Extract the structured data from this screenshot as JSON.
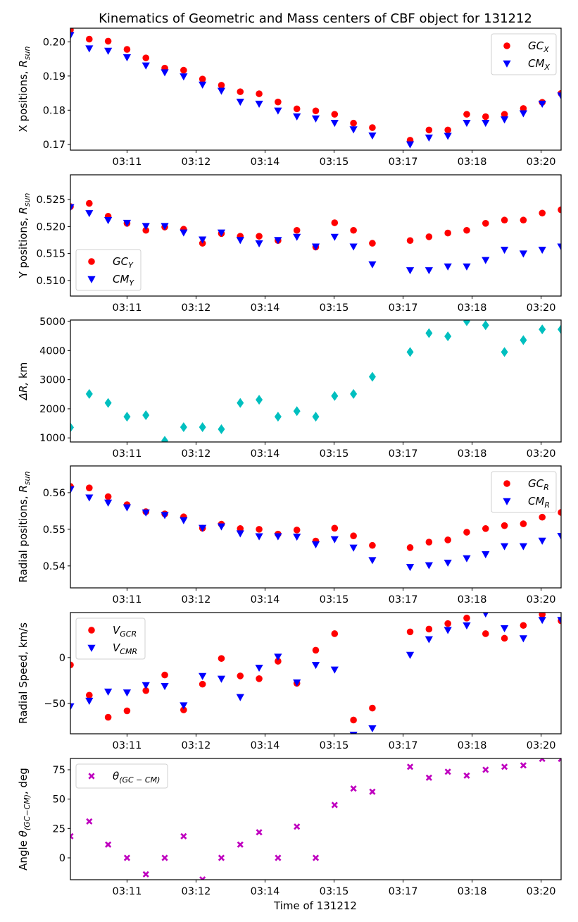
{
  "figure_title": "Kinematics of Geometric and Mass centers of CBF object for 131212",
  "xlabel": "Time of 131212",
  "chart_data": {
    "type": "scatter",
    "title": "Kinematics of Geometric and Mass centers of CBF object for 131212",
    "xlabel": "Time of 131212",
    "x_note": "x is sample index of evenly spaced observations; index 17 has no data",
    "x": [
      0,
      1,
      2,
      3,
      4,
      5,
      6,
      7,
      8,
      9,
      10,
      11,
      12,
      13,
      14,
      15,
      16,
      17,
      18,
      19,
      20,
      21,
      22,
      23,
      24,
      25,
      26
    ],
    "xlim": [
      0,
      26
    ],
    "xticks": [
      {
        "at": 3.0,
        "label": "03:11"
      },
      {
        "at": 6.657,
        "label": "03:12"
      },
      {
        "at": 10.313,
        "label": "03:14"
      },
      {
        "at": 13.97,
        "label": "03:15"
      },
      {
        "at": 17.627,
        "label": "03:17"
      },
      {
        "at": 21.284,
        "label": "03:18"
      },
      {
        "at": 24.94,
        "label": "03:20"
      }
    ],
    "panels": [
      {
        "id": "x-positions",
        "ylabel": "X positions, ",
        "ylabel_math": "R",
        "ylabel_sub": "sun",
        "ylim": [
          0.1683,
          0.204
        ],
        "yticks": [
          0.17,
          0.18,
          0.19,
          0.2
        ],
        "ytick_labels": [
          "0.17",
          "0.18",
          "0.19",
          "0.20"
        ],
        "legend": "top-right",
        "series": [
          {
            "name": "GC",
            "sub": "X",
            "color": "#ff0000",
            "marker": "circle",
            "values": [
              0.2035,
              0.2008,
              0.2002,
              0.1978,
              0.1953,
              0.1923,
              0.1917,
              0.1891,
              0.1873,
              0.1854,
              0.1848,
              0.1824,
              0.1804,
              0.1798,
              0.1788,
              0.1762,
              0.1749,
              null,
              0.1712,
              0.1742,
              0.1742,
              0.1788,
              0.1781,
              0.1788,
              0.1805,
              0.1823,
              0.1849
            ]
          },
          {
            "name": "CM",
            "sub": "X",
            "color": "#0000ff",
            "marker": "triangle-down",
            "values": [
              0.202,
              0.1981,
              0.1974,
              0.1955,
              0.1931,
              0.1911,
              0.1899,
              0.1875,
              0.1857,
              0.1825,
              0.1819,
              0.1799,
              0.1782,
              0.1776,
              0.1763,
              0.1744,
              0.1726,
              null,
              0.17,
              0.172,
              0.1725,
              0.1763,
              0.1763,
              0.1773,
              0.1791,
              0.1819,
              0.1843
            ]
          }
        ]
      },
      {
        "id": "y-positions",
        "ylabel": "Y positions, ",
        "ylabel_math": "R",
        "ylabel_sub": "sun",
        "ylim": [
          0.5071,
          0.5296
        ],
        "yticks": [
          0.51,
          0.515,
          0.52,
          0.525
        ],
        "ytick_labels": [
          "0.510",
          "0.515",
          "0.520",
          "0.525"
        ],
        "legend": "bottom-left",
        "series": [
          {
            "name": "GC",
            "sub": "Y",
            "color": "#ff0000",
            "marker": "circle",
            "values": [
              0.5237,
              0.5243,
              0.5219,
              0.5206,
              0.5193,
              0.5199,
              0.5195,
              0.5169,
              0.5187,
              0.5182,
              0.5182,
              0.5174,
              0.5193,
              0.5162,
              0.5207,
              0.5193,
              0.5169,
              null,
              0.5174,
              0.5181,
              0.5188,
              0.5193,
              0.5206,
              0.5212,
              0.5212,
              0.5225,
              0.5231
            ]
          },
          {
            "name": "CM",
            "sub": "Y",
            "color": "#0000ff",
            "marker": "triangle-down",
            "values": [
              0.5236,
              0.5225,
              0.5212,
              0.5207,
              0.5201,
              0.5201,
              0.5189,
              0.5176,
              0.5189,
              0.5175,
              0.5169,
              0.5175,
              0.5181,
              0.5163,
              0.5181,
              0.5163,
              0.513,
              null,
              0.5119,
              0.5119,
              0.5126,
              0.5126,
              0.5138,
              0.5157,
              0.515,
              0.5157,
              0.5163
            ]
          }
        ]
      },
      {
        "id": "delta-r",
        "ylabel": " km",
        "ylabel_math": "ΔR,",
        "ylabel_sub": "",
        "ylim": [
          860,
          5050
        ],
        "yticks": [
          1000,
          2000,
          3000,
          4000,
          5000
        ],
        "ytick_labels": [
          "1000",
          "2000",
          "3000",
          "4000",
          "5000"
        ],
        "legend": "none",
        "series": [
          {
            "name": "ΔR",
            "sub": "",
            "color": "#00bfbf",
            "marker": "diamond",
            "values": [
              1360,
              2510,
              2200,
              1730,
              1780,
              900,
              1370,
              1370,
              1300,
              2200,
              2310,
              1730,
              1920,
              1730,
              2440,
              2510,
              3100,
              null,
              3950,
              4600,
              4490,
              5010,
              4870,
              3950,
              4360,
              4730,
              4730
            ]
          }
        ]
      },
      {
        "id": "radial-positions",
        "ylabel": "Radial positions, ",
        "ylabel_math": "R",
        "ylabel_sub": "sun",
        "ylim": [
          0.534,
          0.5673
        ],
        "yticks": [
          0.54,
          0.55,
          0.56
        ],
        "ytick_labels": [
          "0.54",
          "0.55",
          "0.56"
        ],
        "legend": "top-right",
        "series": [
          {
            "name": "GC",
            "sub": "R",
            "color": "#ff0000",
            "marker": "circle",
            "values": [
              0.5617,
              0.5613,
              0.5589,
              0.5567,
              0.5548,
              0.5542,
              0.5534,
              0.5503,
              0.5514,
              0.5502,
              0.55,
              0.5487,
              0.5498,
              0.5468,
              0.5503,
              0.5482,
              0.5456,
              null,
              0.545,
              0.5465,
              0.5471,
              0.5492,
              0.5502,
              0.551,
              0.5515,
              0.5533,
              0.5546
            ]
          },
          {
            "name": "CM",
            "sub": "R",
            "color": "#0000ff",
            "marker": "triangle-down",
            "values": [
              0.5609,
              0.5587,
              0.5573,
              0.556,
              0.5546,
              0.5539,
              0.5525,
              0.5504,
              0.5508,
              0.5489,
              0.5481,
              0.5481,
              0.548,
              0.5459,
              0.5473,
              0.545,
              0.5416,
              null,
              0.5397,
              0.5402,
              0.5409,
              0.5421,
              0.5432,
              0.5454,
              0.5454,
              0.5469,
              0.5482
            ]
          }
        ]
      },
      {
        "id": "radial-speed",
        "ylabel": "Radial Speed, km/s",
        "ylabel_math": "",
        "ylabel_sub": "",
        "ylim": [
          -83,
          49
        ],
        "yticks": [
          -50,
          0
        ],
        "ytick_labels": [
          "−50",
          "0"
        ],
        "legend": "top-left",
        "series": [
          {
            "name": "V",
            "sub": "GCR",
            "color": "#ff0000",
            "marker": "circle",
            "values": [
              -8,
              -41,
              -65,
              -58,
              -36,
              -19,
              -57,
              -29,
              -1,
              -20,
              -23,
              -4,
              -28,
              8,
              26,
              -68,
              -55,
              null,
              28,
              31,
              37,
              43,
              26,
              21,
              35,
              47,
              40
            ]
          },
          {
            "name": "V",
            "sub": "CMR",
            "color": "#0000ff",
            "marker": "triangle-down",
            "values": [
              -53,
              -47,
              -37,
              -38,
              -30,
              -31,
              -52,
              -20,
              -23,
              -43,
              -11,
              1,
              -27,
              -8,
              -13,
              -84,
              -77,
              null,
              3,
              20,
              30,
              35,
              48,
              32,
              21,
              41,
              41
            ]
          }
        ]
      },
      {
        "id": "angle",
        "ylabel": "Angle ",
        "ylabel_math": "θ",
        "ylabel_sub": "(GC−CM)",
        "ylabel_suffix": ", deg",
        "ylim": [
          -18.6,
          84.6
        ],
        "yticks": [
          0,
          25,
          50,
          75
        ],
        "ytick_labels": [
          "0",
          "25",
          "50",
          "75"
        ],
        "legend": "top-left",
        "series": [
          {
            "name": "θ",
            "sub": "(GC − CM)",
            "color": "#bf00bf",
            "marker": "x-filled",
            "values": [
              18.4,
              31.0,
              11.3,
              0,
              -14.0,
              0,
              18.4,
              -18.4,
              0,
              11.3,
              21.8,
              0,
              26.6,
              0,
              45.0,
              59.0,
              56.3,
              null,
              77.5,
              68.2,
              73.3,
              70.0,
              75.0,
              77.5,
              78.7,
              84.3,
              84.3
            ]
          }
        ]
      }
    ]
  }
}
